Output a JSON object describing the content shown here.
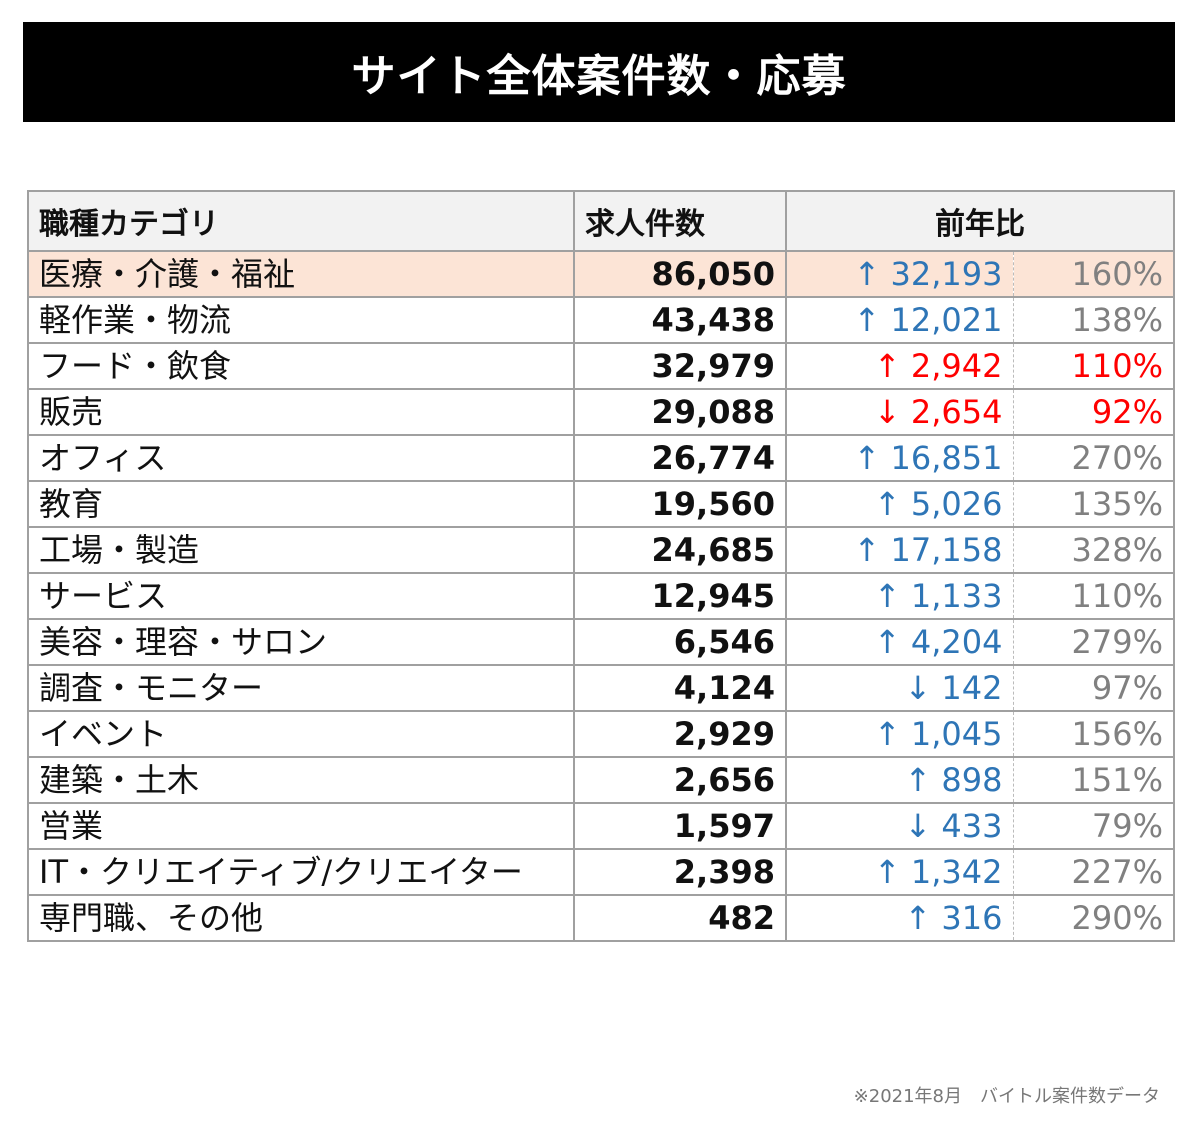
{
  "title": "サイト全体案件数・応募",
  "colors": {
    "up": "#2e75b6",
    "highlight_red": "#ff0000",
    "percent": "#808080",
    "highlight_row": "#fce4d6",
    "header_bg": "#f2f2f2"
  },
  "chart_data": {
    "type": "table",
    "columns": [
      "職種カテゴリ",
      "求人件数",
      "前年比"
    ],
    "rows": [
      {
        "category": "医療・介護・福祉",
        "count": "86,050",
        "diff": "↑ 32,193",
        "pct": "160%",
        "color": "blue",
        "highlight": true
      },
      {
        "category": "軽作業・物流",
        "count": "43,438",
        "diff": "↑ 12,021",
        "pct": "138%",
        "color": "blue"
      },
      {
        "category": "フード・飲食",
        "count": "32,979",
        "diff": "↑ 2,942",
        "pct": "110%",
        "color": "red"
      },
      {
        "category": "販売",
        "count": "29,088",
        "diff": "↓ 2,654",
        "pct": "92%",
        "color": "red"
      },
      {
        "category": "オフィス",
        "count": "26,774",
        "diff": "↑ 16,851",
        "pct": "270%",
        "color": "blue"
      },
      {
        "category": "教育",
        "count": "19,560",
        "diff": "↑ 5,026",
        "pct": "135%",
        "color": "blue"
      },
      {
        "category": "工場・製造",
        "count": "24,685",
        "diff": "↑ 17,158",
        "pct": "328%",
        "color": "blue"
      },
      {
        "category": "サービス",
        "count": "12,945",
        "diff": "↑ 1,133",
        "pct": "110%",
        "color": "blue"
      },
      {
        "category": "美容・理容・サロン",
        "count": "6,546",
        "diff": "↑ 4,204",
        "pct": "279%",
        "color": "blue"
      },
      {
        "category": "調査・モニター",
        "count": "4,124",
        "diff": "↓ 142",
        "pct": "97%",
        "color": "blue"
      },
      {
        "category": "イベント",
        "count": "2,929",
        "diff": "↑ 1,045",
        "pct": "156%",
        "color": "blue"
      },
      {
        "category": "建築・土木",
        "count": "2,656",
        "diff": "↑ 898",
        "pct": "151%",
        "color": "blue"
      },
      {
        "category": "営業",
        "count": "1,597",
        "diff": "↓ 433",
        "pct": "79%",
        "color": "blue"
      },
      {
        "category": "IT・クリエイティブ/クリエイター",
        "count": "2,398",
        "diff": "↑ 1,342",
        "pct": "227%",
        "color": "blue"
      },
      {
        "category": "専門職、その他",
        "count": "482",
        "diff": "↑ 316",
        "pct": "290%",
        "color": "blue"
      }
    ]
  },
  "footnote": "※2021年8月　バイトル案件数データ"
}
